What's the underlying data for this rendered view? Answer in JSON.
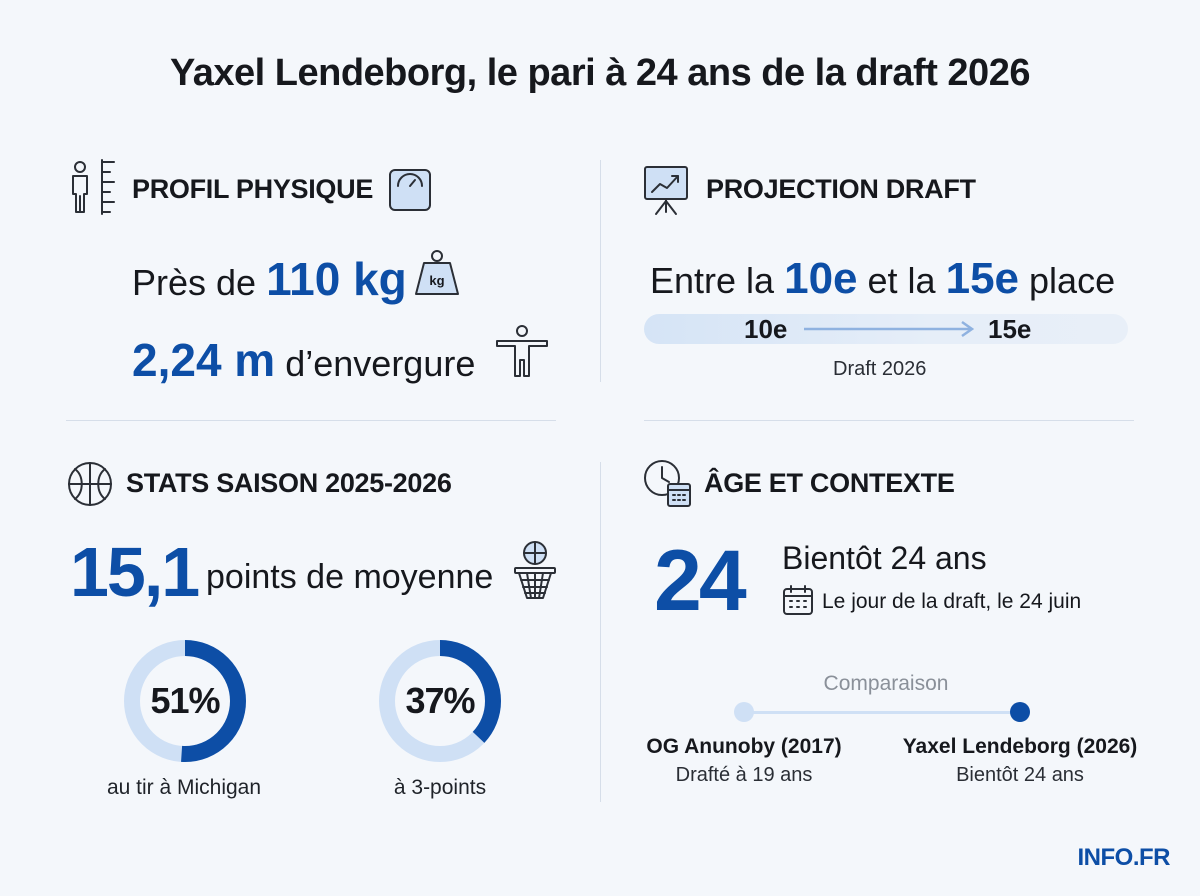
{
  "title": "Yaxel Lendeborg, le pari à 24 ans de la draft 2026",
  "profil": {
    "heading": "PROFIL PHYSIQUE",
    "weight_prefix": "Près de",
    "weight_value": "110 kg",
    "kg_label": "kg",
    "span_value": "2,24 m",
    "span_suffix": "d’envergure"
  },
  "projection": {
    "heading": "PROJECTION DRAFT",
    "line_prefix": "Entre la",
    "from": "10e",
    "middle": "et la",
    "to": "15e",
    "suffix": "place",
    "bar_from": "10e",
    "bar_to": "15e",
    "bar_caption": "Draft 2026"
  },
  "stats": {
    "heading": "STATS SAISON 2025-2026",
    "points_value": "15,1",
    "points_label": "points de moyenne",
    "donuts": [
      {
        "value_label": "51%",
        "fraction": 0.51,
        "caption": "au tir à Michigan"
      },
      {
        "value_label": "37%",
        "fraction": 0.37,
        "caption": "à 3-points"
      }
    ]
  },
  "age": {
    "heading": "ÂGE ET CONTEXTE",
    "age_value": "24",
    "age_text": "Bientôt 24 ans",
    "draft_day": "Le jour de la draft, le 24 juin",
    "comparison_label": "Comparaison",
    "left_name": "OG Anunoby (2017)",
    "left_detail": "Drafté à 19 ans",
    "right_name": "Yaxel Lendeborg (2026)",
    "right_detail": "Bientôt 24 ans"
  },
  "brand": "INFO.FR",
  "colors": {
    "accent": "#0d4ea6",
    "accent_light": "#cfe0f5",
    "background": "#f4f7fb"
  }
}
